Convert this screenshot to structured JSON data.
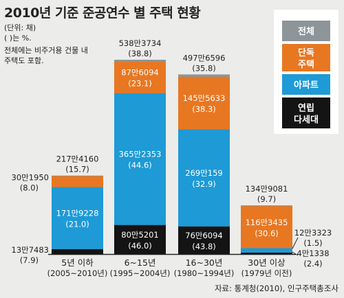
{
  "title": "2010년 기준 준공연수 별 주택 현황",
  "notes": [
    "(단위: 채)",
    "( )는 %.",
    "전체에는 비주거용 건물 내",
    "주택도 포함."
  ],
  "source": "자료: 통계청(2010), 인구주택총조사",
  "colors": {
    "total": "#8d9599",
    "detached": "#e87722",
    "apartment": "#1e9ad6",
    "rowhouse": "#141414",
    "background": "#ececea",
    "legend_bg": "#ffffff"
  },
  "legend": [
    {
      "key": "total",
      "label": "전체"
    },
    {
      "key": "detached",
      "label": "단독\n주택"
    },
    {
      "key": "apartment",
      "label": "아파트"
    },
    {
      "key": "rowhouse",
      "label": "연립\n다세대"
    }
  ],
  "chart_data": {
    "type": "bar",
    "stacked": true,
    "categories": [
      "5년 이하",
      "6~15년",
      "16~30년",
      "30년 이상"
    ],
    "category_sublabels": [
      "(2005~2010년)",
      "(1995~2004년)",
      "(1980~1994년)",
      "(1979년 이전)"
    ],
    "unit": "채",
    "totals": [
      {
        "text": "217만4160",
        "pct": "(15.7)",
        "value": 2174160
      },
      {
        "text": "538만3734",
        "pct": "(38.8)",
        "value": 5383734
      },
      {
        "text": "497만6596",
        "pct": "(35.8)",
        "value": 4976596
      },
      {
        "text": "134만9081",
        "pct": "(9.7)",
        "value": 1349081
      }
    ],
    "series": [
      {
        "name": "연립 다세대",
        "key": "rowhouse",
        "values": [
          137483,
          805201,
          766094,
          41338
        ],
        "labels": [
          {
            "text": "13만7483",
            "pct": "(7.9)"
          },
          {
            "text": "80만5201",
            "pct": "(46.0)"
          },
          {
            "text": "76만6094",
            "pct": "(43.8)"
          },
          {
            "text": "4만1338",
            "pct": "(2.4)"
          }
        ]
      },
      {
        "name": "아파트",
        "key": "apartment",
        "values": [
          1719228,
          3652353,
          2690159,
          123323
        ],
        "labels": [
          {
            "text": "171만9228",
            "pct": "(21.0)"
          },
          {
            "text": "365만2353",
            "pct": "(44.6)"
          },
          {
            "text": "269만159",
            "pct": "(32.9)"
          },
          {
            "text": "12만3323",
            "pct": "(1.5)"
          }
        ]
      },
      {
        "name": "단독 주택",
        "key": "detached",
        "values": [
          301950,
          876094,
          1455633,
          1163435
        ],
        "labels": [
          {
            "text": "30만1950",
            "pct": "(8.0)"
          },
          {
            "text": "87만6094",
            "pct": "(23.1)"
          },
          {
            "text": "145만5633",
            "pct": "(38.3)"
          },
          {
            "text": "116만3435",
            "pct": "(30.6)"
          }
        ]
      }
    ]
  }
}
